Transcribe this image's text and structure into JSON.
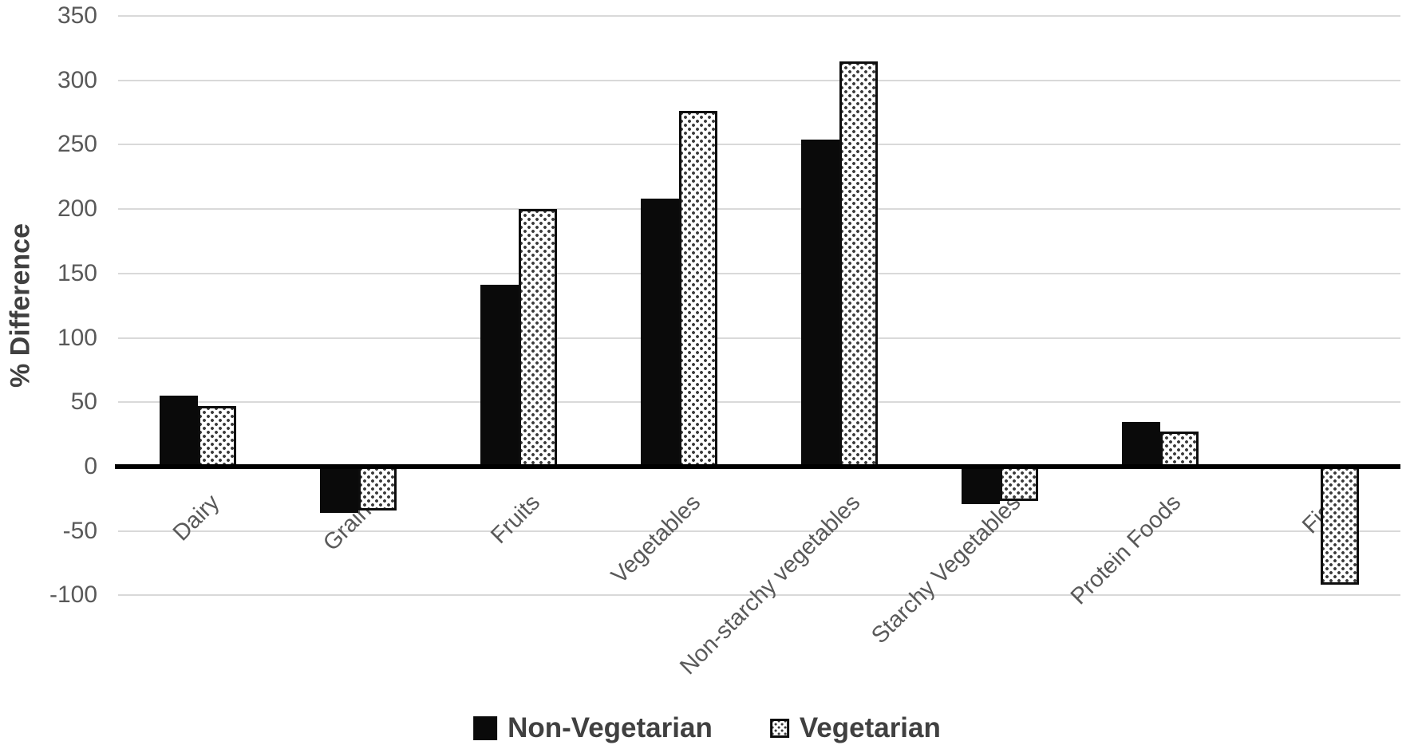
{
  "figure": {
    "ylabel": "% Difference"
  },
  "chart_data": {
    "type": "bar",
    "title": "",
    "xlabel": "",
    "ylabel": "% Difference",
    "categories": [
      "Dairy",
      "Grains",
      "Fruits",
      "Vegetables",
      "Non-starchy vegetables",
      "Starchy Vegetables",
      "Protein Foods",
      "Fish"
    ],
    "series": [
      {
        "name": "Non-Vegetarian",
        "pattern": "solid-black",
        "values": [
          55,
          -34,
          141,
          208,
          254,
          -27,
          35,
          0
        ]
      },
      {
        "name": "Vegetarian",
        "pattern": "dotted-white",
        "values": [
          47,
          -32,
          200,
          276,
          315,
          -25,
          27,
          -90
        ]
      }
    ],
    "ylim": [
      -100,
      350
    ],
    "ytick_step": 50,
    "yticks": [
      350,
      300,
      250,
      200,
      150,
      100,
      50,
      0,
      -50,
      -100
    ],
    "grid": true,
    "legend_position": "bottom",
    "colors": {
      "non_vegetarian_fill": "#0a0a0a",
      "vegetarian_fill": "#ffffff",
      "vegetarian_dots": "#3a3a3a",
      "gridline": "#d9d9d9",
      "zero_axis": "#000000",
      "tick_text": "#595959",
      "label_text": "#404040"
    }
  }
}
